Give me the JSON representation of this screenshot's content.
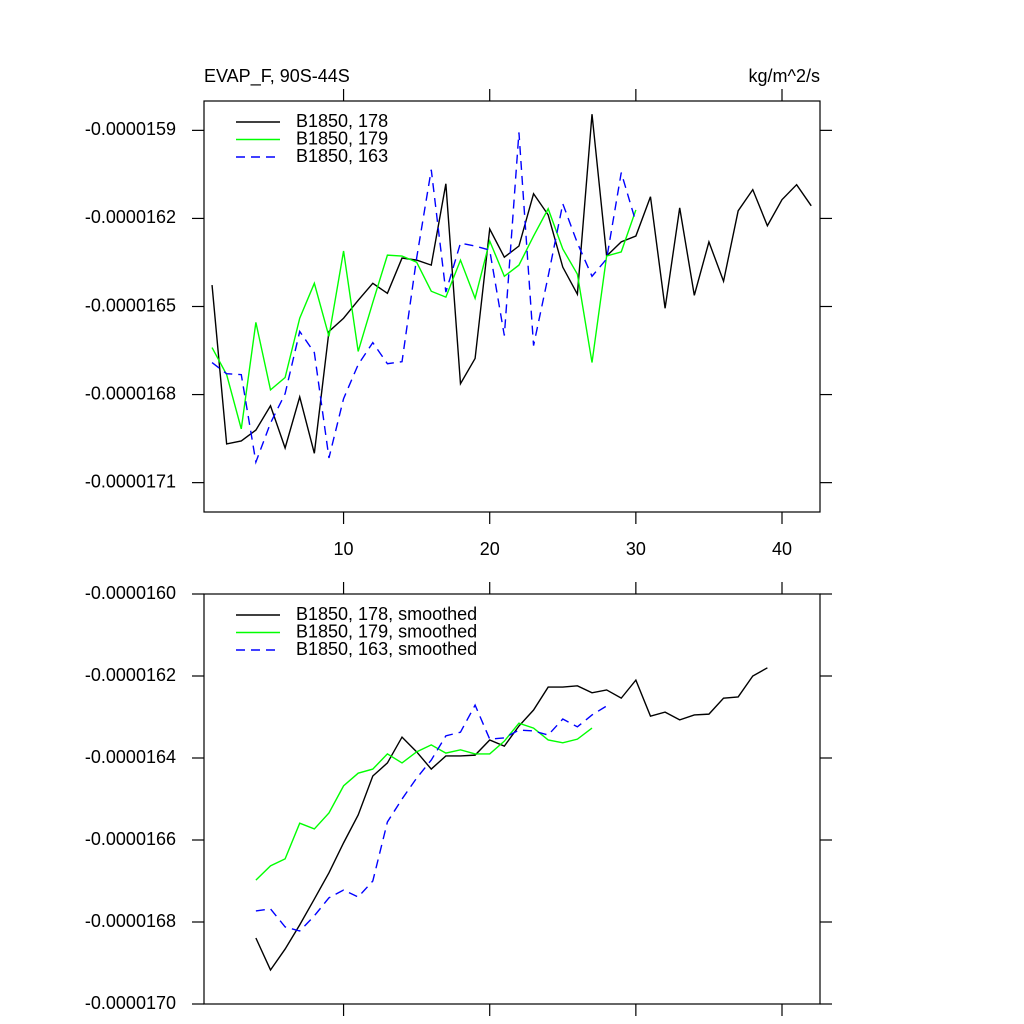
{
  "chart_data": [
    {
      "type": "line",
      "title": "EVAP_F, 90S-44S",
      "units_label": "kg/m^2/s",
      "xlim": [
        0.45,
        42.6
      ],
      "xticks": [
        10,
        20,
        30,
        40
      ],
      "ylim": [
        -1.72e-05,
        -1.58e-05
      ],
      "yticks": [
        -1.59e-05,
        -1.62e-05,
        -1.65e-05,
        -1.68e-05,
        -1.71e-05
      ],
      "legend": "upper left",
      "series": [
        {
          "name": "B1850, 178",
          "color": "#000000",
          "dashed": false,
          "x": [
            1,
            2,
            3,
            4,
            5,
            6,
            7,
            8,
            9,
            10,
            11,
            12,
            13,
            14,
            15,
            16,
            17,
            18,
            19,
            20,
            21,
            22,
            23,
            24,
            25,
            26,
            27,
            28,
            29,
            30,
            31,
            32,
            33,
            34,
            35,
            36,
            37,
            38,
            39,
            40,
            41,
            42
          ],
          "values": [
            -1.6427e-05,
            -1.6968e-05,
            -1.6958e-05,
            -1.6921e-05,
            -1.6838e-05,
            -1.6982e-05,
            -1.6808e-05,
            -1.7e-05,
            -1.6585e-05,
            -1.654e-05,
            -1.6479e-05,
            -1.6421e-05,
            -1.6455e-05,
            -1.6335e-05,
            -1.6342e-05,
            -1.6359e-05,
            -1.6082e-05,
            -1.6763e-05,
            -1.6677e-05,
            -1.6236e-05,
            -1.6332e-05,
            -1.6294e-05,
            -1.6116e-05,
            -1.6188e-05,
            -1.6366e-05,
            -1.6458e-05,
            -1.5845e-05,
            -1.6328e-05,
            -1.628e-05,
            -1.626e-05,
            -1.6126e-05,
            -1.6506e-05,
            -1.6164e-05,
            -1.6462e-05,
            -1.628e-05,
            -1.6414e-05,
            -1.6174e-05,
            -1.6102e-05,
            -1.6225e-05,
            -1.6136e-05,
            -1.6085e-05,
            -1.6157e-05
          ]
        },
        {
          "name": "B1850, 179",
          "color": "#00ff00",
          "dashed": false,
          "x": [
            1,
            2,
            3,
            4,
            5,
            6,
            7,
            8,
            9,
            10,
            11,
            12,
            13,
            14,
            15,
            16,
            17,
            18,
            19,
            20,
            21,
            22,
            23,
            24,
            25,
            26,
            27,
            28,
            29,
            30
          ],
          "values": [
            -1.664e-05,
            -1.6732e-05,
            -1.6917e-05,
            -1.6554e-05,
            -1.6784e-05,
            -1.6742e-05,
            -1.654e-05,
            -1.6421e-05,
            -1.6602e-05,
            -1.6311e-05,
            -1.6653e-05,
            -1.6486e-05,
            -1.6325e-05,
            -1.6328e-05,
            -1.6349e-05,
            -1.6448e-05,
            -1.6468e-05,
            -1.6342e-05,
            -1.6472e-05,
            -1.6277e-05,
            -1.6397e-05,
            -1.6359e-05,
            -1.626e-05,
            -1.6167e-05,
            -1.6304e-05,
            -1.639e-05,
            -1.6691e-05,
            -1.6328e-05,
            -1.6314e-05,
            -1.6171e-05
          ]
        },
        {
          "name": "B1850, 163",
          "color": "#0000ff",
          "dashed": true,
          "x": [
            1,
            2,
            3,
            4,
            5,
            6,
            7,
            8,
            9,
            10,
            11,
            12,
            13,
            14,
            15,
            16,
            17,
            18,
            19,
            20,
            21,
            22,
            23,
            24,
            25,
            26,
            27,
            28,
            29,
            30
          ],
          "values": [
            -1.6691e-05,
            -1.6729e-05,
            -1.6732e-05,
            -1.703e-05,
            -1.6897e-05,
            -1.6797e-05,
            -1.6585e-05,
            -1.6657e-05,
            -1.7016e-05,
            -1.6814e-05,
            -1.6698e-05,
            -1.6623e-05,
            -1.6695e-05,
            -1.6688e-05,
            -1.6335e-05,
            -1.6034e-05,
            -1.6451e-05,
            -1.6284e-05,
            -1.6294e-05,
            -1.6308e-05,
            -1.6599e-05,
            -1.5907e-05,
            -1.6633e-05,
            -1.6397e-05,
            -1.615e-05,
            -1.6284e-05,
            -1.6397e-05,
            -1.6338e-05,
            -1.6044e-05,
            -1.6212e-05
          ]
        }
      ]
    },
    {
      "type": "line",
      "xlim": [
        0.45,
        42.6
      ],
      "xticks": [
        10,
        20,
        30,
        40
      ],
      "show_xtick_labels": false,
      "ylim": [
        -1.7e-05,
        -1.6e-05
      ],
      "yticks": [
        {
          "value": -1.6e-05,
          "label": "-0.0000160"
        },
        -1.62e-05,
        -1.64e-05,
        -1.66e-05,
        -1.68e-05,
        {
          "value": -1.7e-05,
          "label": "-0.0000170"
        }
      ],
      "legend": "upper left",
      "series": [
        {
          "name": "B1850, 178, smoothed",
          "color": "#000000",
          "dashed": false,
          "x": [
            4,
            5,
            6,
            7,
            8,
            9,
            10,
            11,
            12,
            13,
            14,
            15,
            16,
            17,
            18,
            19,
            20,
            21,
            22,
            23,
            24,
            25,
            26,
            27,
            28,
            29,
            30,
            31,
            32,
            33,
            34,
            35,
            36,
            37,
            38,
            39
          ],
          "values": [
            -1.6839e-05,
            -1.6917e-05,
            -1.6866e-05,
            -1.6807e-05,
            -1.6744e-05,
            -1.668e-05,
            -1.6607e-05,
            -1.6539e-05,
            -1.6444e-05,
            -1.6412e-05,
            -1.6349e-05,
            -1.6385e-05,
            -1.6427e-05,
            -1.6395e-05,
            -1.6395e-05,
            -1.6393e-05,
            -1.6356e-05,
            -1.6371e-05,
            -1.6322e-05,
            -1.6283e-05,
            -1.6227e-05,
            -1.6227e-05,
            -1.6224e-05,
            -1.6241e-05,
            -1.6234e-05,
            -1.6254e-05,
            -1.621e-05,
            -1.6298e-05,
            -1.6288e-05,
            -1.6307e-05,
            -1.6295e-05,
            -1.6293e-05,
            -1.6254e-05,
            -1.6251e-05,
            -1.62e-05,
            -1.618e-05
          ]
        },
        {
          "name": "B1850, 179, smoothed",
          "color": "#00ff00",
          "dashed": false,
          "x": [
            4,
            5,
            6,
            7,
            8,
            9,
            10,
            11,
            12,
            13,
            14,
            15,
            16,
            17,
            18,
            19,
            20,
            21,
            22,
            23,
            24,
            25,
            26,
            27
          ],
          "values": [
            -1.6698e-05,
            -1.6663e-05,
            -1.6646e-05,
            -1.6559e-05,
            -1.6573e-05,
            -1.6534e-05,
            -1.6468e-05,
            -1.6437e-05,
            -1.6427e-05,
            -1.639e-05,
            -1.6412e-05,
            -1.6385e-05,
            -1.6368e-05,
            -1.6388e-05,
            -1.638e-05,
            -1.639e-05,
            -1.639e-05,
            -1.6359e-05,
            -1.6315e-05,
            -1.6327e-05,
            -1.6356e-05,
            -1.6363e-05,
            -1.6354e-05,
            -1.6327e-05
          ]
        },
        {
          "name": "B1850, 163, smoothed",
          "color": "#0000ff",
          "dashed": true,
          "x": [
            4,
            5,
            6,
            7,
            8,
            9,
            10,
            11,
            12,
            13,
            14,
            15,
            16,
            17,
            18,
            19,
            20,
            21,
            22,
            23,
            24,
            25,
            26,
            27,
            28
          ],
          "values": [
            -1.6773e-05,
            -1.6768e-05,
            -1.6812e-05,
            -1.6822e-05,
            -1.6785e-05,
            -1.6741e-05,
            -1.6722e-05,
            -1.6739e-05,
            -1.67e-05,
            -1.6556e-05,
            -1.65e-05,
            -1.6449e-05,
            -1.6405e-05,
            -1.6346e-05,
            -1.6337e-05,
            -1.6271e-05,
            -1.6354e-05,
            -1.6351e-05,
            -1.6332e-05,
            -1.6334e-05,
            -1.6344e-05,
            -1.6305e-05,
            -1.6324e-05,
            -1.6295e-05,
            -1.6273e-05
          ]
        }
      ]
    }
  ]
}
